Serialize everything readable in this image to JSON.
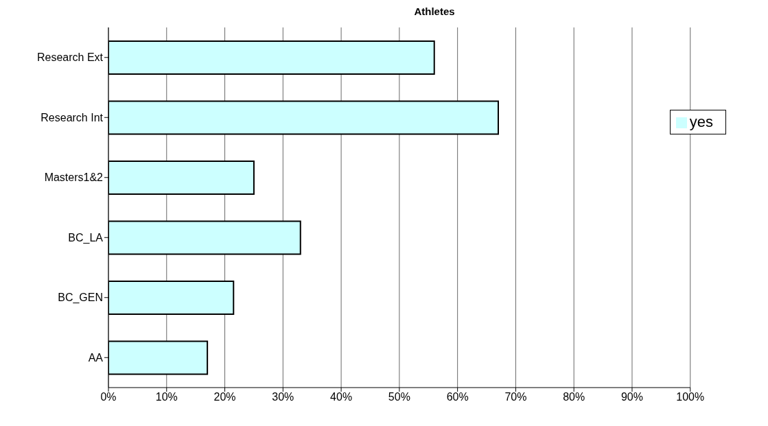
{
  "chart_data": {
    "type": "bar",
    "orientation": "horizontal",
    "title": "Athletes",
    "categories": [
      "Research Ext",
      "Research Int",
      "Masters1&2",
      "BC_LA",
      "BC_GEN",
      "AA"
    ],
    "series": [
      {
        "name": "yes",
        "color": "#ccffff",
        "values": [
          56,
          67,
          25,
          33,
          21.5,
          17
        ]
      }
    ],
    "xlim": [
      0,
      100
    ],
    "xticks": [
      {
        "value": 0,
        "label": "0%"
      },
      {
        "value": 10,
        "label": "10%"
      },
      {
        "value": 20,
        "label": "20%"
      },
      {
        "value": 30,
        "label": "30%"
      },
      {
        "value": 40,
        "label": "40%"
      },
      {
        "value": 50,
        "label": "50%"
      },
      {
        "value": 60,
        "label": "60%"
      },
      {
        "value": 70,
        "label": "70%"
      },
      {
        "value": 80,
        "label": "80%"
      },
      {
        "value": 90,
        "label": "90%"
      },
      {
        "value": 100,
        "label": "100%"
      }
    ],
    "grid": "x",
    "legend": "right"
  }
}
